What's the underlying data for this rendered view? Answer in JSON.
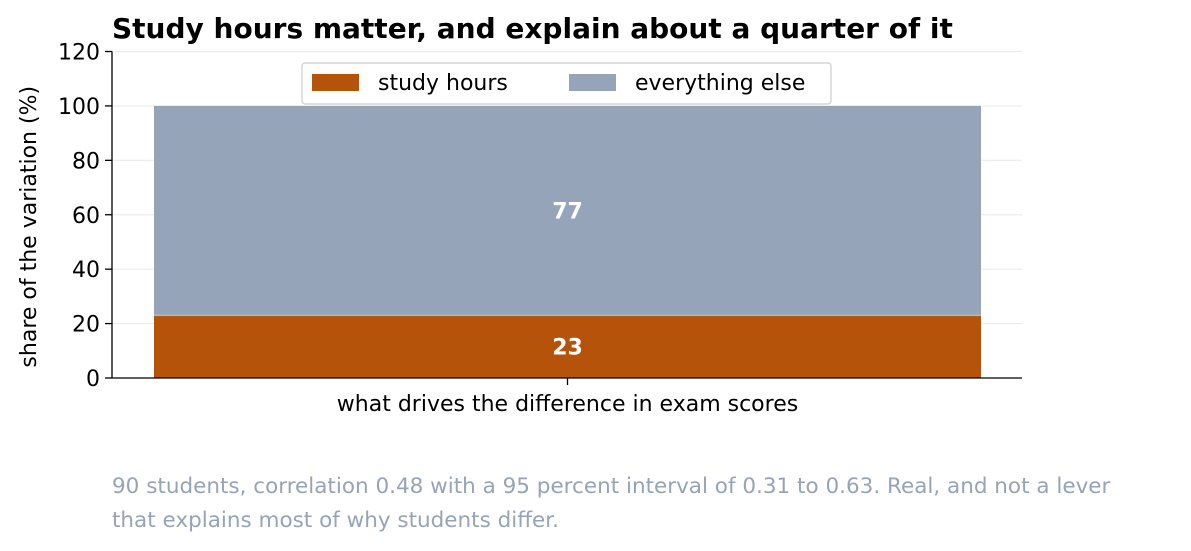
{
  "chart_data": {
    "type": "bar",
    "stacked": true,
    "title": "Study hours matter, and explain about a quarter of it",
    "xlabel": "what drives the difference in exam scores",
    "ylabel": "share of the variation (%)",
    "ylim": [
      0,
      120
    ],
    "yticks": [
      0,
      20,
      40,
      60,
      80,
      100,
      120
    ],
    "categories": [
      ""
    ],
    "series": [
      {
        "name": "study hours",
        "values": [
          23
        ],
        "color": "#b5530b",
        "label": "23"
      },
      {
        "name": "everything else",
        "values": [
          77
        ],
        "color": "#95a4b8",
        "label": "77"
      }
    ],
    "grid": "horizontal",
    "legend": "top-center"
  },
  "caption": {
    "line1": "90 students, correlation 0.48 with a 95 percent interval of 0.31 to 0.63. Real, and not a lever",
    "line2": "that explains most of why students differ."
  }
}
